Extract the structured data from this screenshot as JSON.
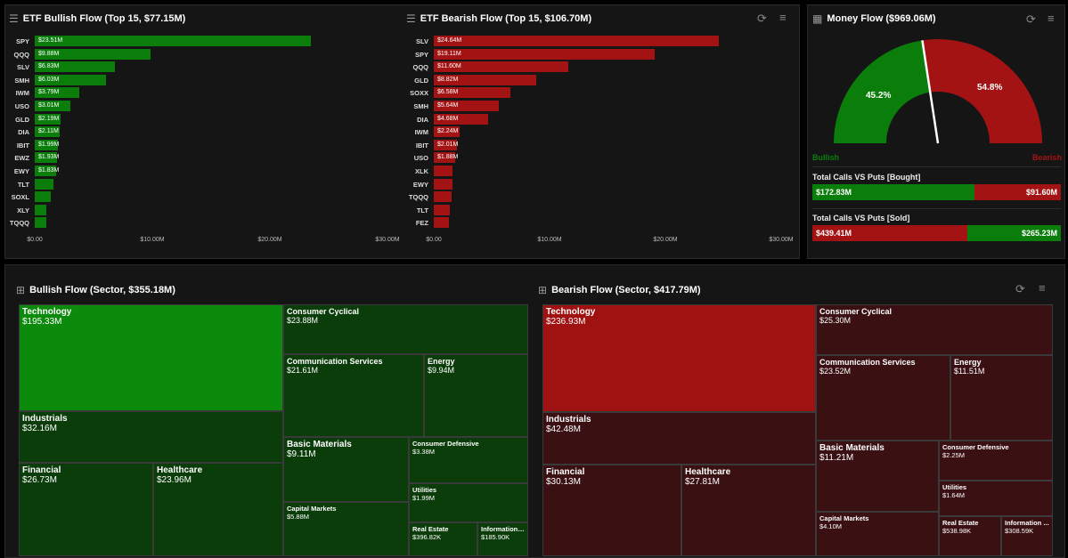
{
  "colors": {
    "bull": "#0b7d0b",
    "bear": "#a31313",
    "bull_tech": "#0b8a0b",
    "bull_tile": "#0a3d0a",
    "bear_tech": "#a01212",
    "bear_tile": "#3a1012"
  },
  "bullish_etf": {
    "title": "ETF Bullish Flow (Top 15, $77.15M)",
    "icon": "menu-lines-icon",
    "chart_data": {
      "type": "bar",
      "orientation": "horizontal",
      "xlim": [
        0,
        30
      ],
      "ticks": [
        "$0.00",
        "$10.00M",
        "$20.00M",
        "$30.00M"
      ],
      "categories": [
        "SPY",
        "QQQ",
        "SLV",
        "SMH",
        "IWM",
        "USO",
        "GLD",
        "DIA",
        "IBIT",
        "EWZ",
        "EWY",
        "TLT",
        "SOXL",
        "XLY",
        "TQQQ"
      ],
      "values": [
        23.51,
        9.88,
        6.83,
        6.03,
        3.79,
        3.01,
        2.19,
        2.11,
        1.99,
        1.93,
        1.83,
        1.6,
        1.4,
        1.0,
        0.95
      ],
      "labels": [
        "$23.51M",
        "$9.88M",
        "$6.83M",
        "$6.03M",
        "$3.79M",
        "$3.01M",
        "$2.19M",
        "$2.11M",
        "$1.99M",
        "$1.93M",
        "$1.83M",
        "",
        "",
        "",
        ""
      ]
    }
  },
  "bearish_etf": {
    "title": "ETF Bearish Flow (Top 15, $106.70M)",
    "icon": "menu-lines-icon",
    "chart_data": {
      "type": "bar",
      "orientation": "horizontal",
      "xlim": [
        0,
        30
      ],
      "ticks": [
        "$0.00",
        "$10.00M",
        "$20.00M",
        "$30.00M"
      ],
      "categories": [
        "SLV",
        "SPY",
        "QQQ",
        "GLD",
        "SOXX",
        "SMH",
        "DIA",
        "IWM",
        "IBIT",
        "USO",
        "XLK",
        "EWY",
        "TQQQ",
        "TLT",
        "FEZ"
      ],
      "values": [
        24.64,
        19.11,
        11.6,
        8.82,
        6.58,
        5.64,
        4.68,
        2.24,
        2.01,
        1.88,
        1.65,
        1.6,
        1.5,
        1.4,
        1.3
      ],
      "labels": [
        "$24.64M",
        "$19.11M",
        "$11.60M",
        "$8.82M",
        "$6.58M",
        "$5.64M",
        "$4.68M",
        "$2.24M",
        "$2.01M",
        "$1.88M",
        "",
        "",
        "",
        "",
        ""
      ]
    }
  },
  "money_flow": {
    "title": "Money Flow ($969.06M)",
    "bullish_pct": 45.2,
    "bearish_pct": 54.8,
    "bullish_label": "45.2%",
    "bearish_label": "54.8%",
    "legend_bull": "Bullish",
    "legend_bear": "Bearish",
    "bought": {
      "title": "Total Calls VS Puts [Bought]",
      "calls": "$172.83M",
      "puts": "$91.60M",
      "calls_value": 172.83,
      "puts_value": 91.6
    },
    "sold": {
      "title": "Total Calls VS Puts [Sold]",
      "puts": "$439.41M",
      "calls": "$265.23M",
      "puts_value": 439.41,
      "calls_value": 265.23
    }
  },
  "bullish_sector": {
    "title": "Bullish Flow (Sector, $355.18M)",
    "tiles": [
      {
        "name": "Technology",
        "value": "$195.33M"
      },
      {
        "name": "Industrials",
        "value": "$32.16M"
      },
      {
        "name": "Financial",
        "value": "$26.73M"
      },
      {
        "name": "Healthcare",
        "value": "$23.96M"
      },
      {
        "name": "Consumer Cyclical",
        "value": "$23.88M"
      },
      {
        "name": "Communication Services",
        "value": "$21.61M"
      },
      {
        "name": "Energy",
        "value": "$9.94M"
      },
      {
        "name": "Basic Materials",
        "value": "$9.11M"
      },
      {
        "name": "Capital Markets",
        "value": "$5.88M"
      },
      {
        "name": "Consumer Defensive",
        "value": "$3.38M"
      },
      {
        "name": "Utilities",
        "value": "$1.99M"
      },
      {
        "name": "Real Estate",
        "value": "$396.82K"
      },
      {
        "name": "Information ...",
        "value": "$185.90K"
      }
    ]
  },
  "bearish_sector": {
    "title": "Bearish Flow (Sector, $417.79M)",
    "tiles": [
      {
        "name": "Technology",
        "value": "$236.93M"
      },
      {
        "name": "Industrials",
        "value": "$42.48M"
      },
      {
        "name": "Financial",
        "value": "$30.13M"
      },
      {
        "name": "Healthcare",
        "value": "$27.81M"
      },
      {
        "name": "Consumer Cyclical",
        "value": "$25.30M"
      },
      {
        "name": "Communication Services",
        "value": "$23.52M"
      },
      {
        "name": "Energy",
        "value": "$11.51M"
      },
      {
        "name": "Basic Materials",
        "value": "$11.21M"
      },
      {
        "name": "Capital Markets",
        "value": "$4.10M"
      },
      {
        "name": "Consumer Defensive",
        "value": "$2.25M"
      },
      {
        "name": "Utilities",
        "value": "$1.64M"
      },
      {
        "name": "Real Estate",
        "value": "$538.98K"
      },
      {
        "name": "Information ...",
        "value": "$308.59K"
      }
    ]
  }
}
